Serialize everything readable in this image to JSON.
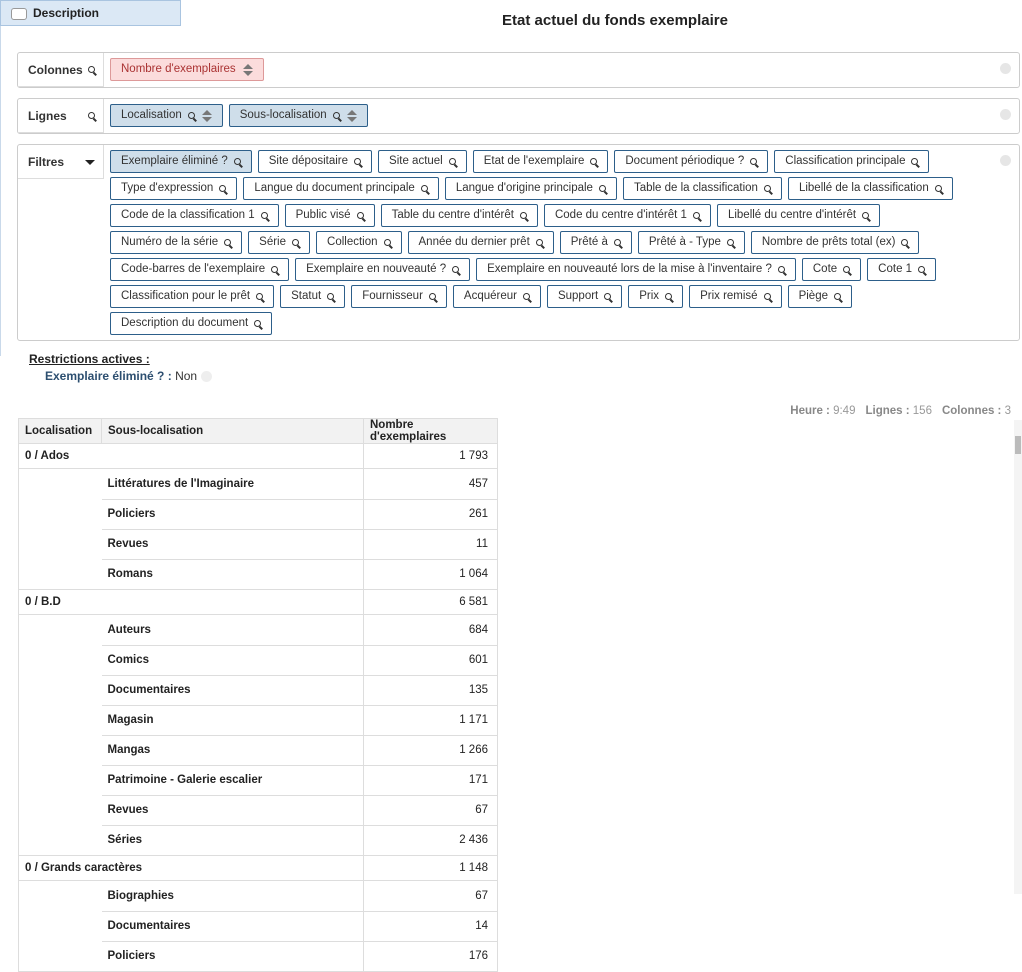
{
  "tab": "Description",
  "title": "Etat actuel du fonds exemplaire",
  "columns": {
    "label": "Colonnes",
    "chips": [
      "Nombre d'exemplaires"
    ]
  },
  "rows": {
    "label": "Lignes",
    "chips": [
      "Localisation",
      "Sous-localisation"
    ]
  },
  "filters": {
    "label": "Filtres",
    "chips": [
      "Exemplaire éliminé ?",
      "Site dépositaire",
      "Site actuel",
      "Etat de l'exemplaire",
      "Document périodique ?",
      "Classification principale",
      "Type d'expression",
      "Langue du document principale",
      "Langue d'origine principale",
      "Table de la classification",
      "Libellé de la classification",
      "Code de la classification 1",
      "Public visé",
      "Table du centre d'intérêt",
      "Code du centre d'intérêt 1",
      "Libellé du centre d'intérêt",
      "Numéro de la série",
      "Série",
      "Collection",
      "Année du dernier prêt",
      "Prêté à",
      "Prêté à - Type",
      "Nombre de prêts total (ex)",
      "Code-barres de l'exemplaire",
      "Exemplaire en nouveauté ?",
      "Exemplaire en nouveauté lors de la mise à l'inventaire ?",
      "Cote",
      "Cote 1",
      "Classification pour le prêt",
      "Statut",
      "Fournisseur",
      "Acquéreur",
      "Support",
      "Prix",
      "Prix remisé",
      "Piège",
      "Description du document"
    ]
  },
  "restrictions": {
    "title": "Restrictions actives :",
    "items": [
      {
        "label": "Exemplaire éliminé ? :",
        "value": "Non"
      }
    ]
  },
  "stats": [
    {
      "label": "Heure :",
      "value": "9:49"
    },
    {
      "label": "Lignes :",
      "value": "156"
    },
    {
      "label": "Colonnes :",
      "value": "3"
    }
  ],
  "table": {
    "headers": [
      "Localisation",
      "Sous-localisation",
      "Nombre d'exemplaires"
    ],
    "groups": [
      {
        "location": "0 / Ados",
        "total": "1 793",
        "rows": [
          [
            "Littératures de l'Imaginaire",
            "457"
          ],
          [
            "Policiers",
            "261"
          ],
          [
            "Revues",
            "11"
          ],
          [
            "Romans",
            "1 064"
          ]
        ]
      },
      {
        "location": "0 / B.D",
        "total": "6 581",
        "rows": [
          [
            "Auteurs",
            "684"
          ],
          [
            "Comics",
            "601"
          ],
          [
            "Documentaires",
            "135"
          ],
          [
            "Magasin",
            "1 171"
          ],
          [
            "Mangas",
            "1 266"
          ],
          [
            "Patrimoine - Galerie escalier",
            "171"
          ],
          [
            "Revues",
            "67"
          ],
          [
            "Séries",
            "2 436"
          ]
        ]
      },
      {
        "location": "0 / Grands caractères",
        "total": "1 148",
        "rows": [
          [
            "Biographies",
            "67"
          ],
          [
            "Documentaires",
            "14"
          ],
          [
            "Policiers",
            "176"
          ]
        ]
      }
    ]
  }
}
